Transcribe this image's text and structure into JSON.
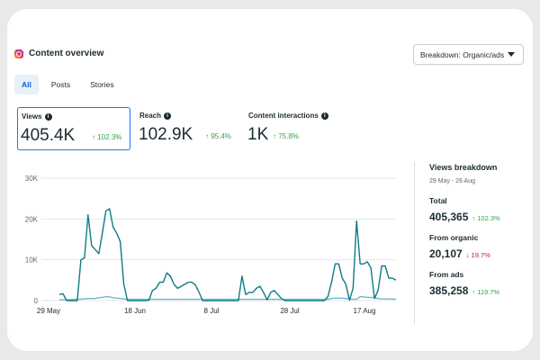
{
  "header": {
    "title": "Content overview",
    "icon": "instagram-icon",
    "breakdown_select": "Breakdown: Organic/ads"
  },
  "tabs": [
    {
      "label": "All",
      "active": true
    },
    {
      "label": "Posts",
      "active": false
    },
    {
      "label": "Stories",
      "active": false
    }
  ],
  "metrics": [
    {
      "label": "Views",
      "value": "405.4K",
      "change": "↑ 102.3%",
      "selected": true
    },
    {
      "label": "Reach",
      "value": "102.9K",
      "change": "↑ 95.4%",
      "selected": false
    },
    {
      "label": "Content interactions",
      "value": "1K",
      "change": "↑ 75.8%",
      "selected": false
    }
  ],
  "chart_data": {
    "type": "line",
    "xlabel": "",
    "ylabel": "",
    "ylim": [
      0,
      30000
    ],
    "yticks": [
      "0",
      "10K",
      "20K",
      "30K"
    ],
    "xticks": [
      "29 May",
      "18 Jun",
      "8 Jul",
      "28 Jul",
      "17 Aug"
    ],
    "grid": true,
    "series": [
      {
        "color": "#0e7c86",
        "values": [
          1500,
          1700,
          0,
          0,
          0,
          0,
          10000,
          10500,
          21000,
          13500,
          12500,
          11500,
          16500,
          22000,
          22500,
          18000,
          16500,
          14500,
          4000,
          0,
          0,
          0,
          0,
          0,
          0,
          100,
          2500,
          3000,
          4500,
          4500,
          6800,
          6000,
          4000,
          3000,
          3500,
          4000,
          4500,
          4500,
          3800,
          2000,
          0,
          0,
          0,
          0,
          0,
          0,
          0,
          0,
          0,
          0,
          0,
          6000,
          1500,
          2000,
          2000,
          3000,
          3500,
          2000,
          200,
          2000,
          2500,
          1500,
          500,
          0,
          0,
          0,
          0,
          0,
          0,
          0,
          0,
          0,
          0,
          0,
          0,
          1000,
          4500,
          9000,
          9000,
          5500,
          4000,
          100,
          3000,
          19500,
          9000,
          9000,
          9500,
          8000,
          500,
          2500,
          8500,
          8500,
          5500,
          5500,
          5000
        ]
      },
      {
        "color": "#6fb7c6",
        "values": [
          200,
          200,
          200,
          250,
          300,
          300,
          350,
          400,
          500,
          500,
          500,
          700,
          800,
          1000,
          900,
          700,
          600,
          500,
          400,
          300,
          300,
          300,
          300,
          300,
          300,
          300,
          300,
          300,
          300,
          300,
          300,
          300,
          300,
          300,
          300,
          300,
          300,
          300,
          300,
          300,
          300,
          300,
          300,
          300,
          300,
          300,
          300,
          300,
          300,
          300,
          300,
          300,
          300,
          300,
          300,
          300,
          300,
          300,
          300,
          300,
          300,
          300,
          300,
          300,
          300,
          300,
          300,
          300,
          300,
          300,
          300,
          300,
          300,
          300,
          300,
          300,
          500,
          600,
          600,
          600,
          500,
          400,
          300,
          300,
          1000,
          900,
          800,
          800,
          700,
          500,
          400,
          400,
          400,
          400,
          300
        ]
      }
    ]
  },
  "views_breakdown": {
    "title": "Views breakdown",
    "date_range": "29 May - 26 Aug",
    "rows": [
      {
        "label": "Total",
        "value": "405,365",
        "change": "↑ 102.3%",
        "direction": "up"
      },
      {
        "label": "From organic",
        "value": "20,107",
        "change": "↓ 19.7%",
        "direction": "down"
      },
      {
        "label": "From ads",
        "value": "385,258",
        "change": "↑ 119.7%",
        "direction": "up"
      }
    ]
  }
}
